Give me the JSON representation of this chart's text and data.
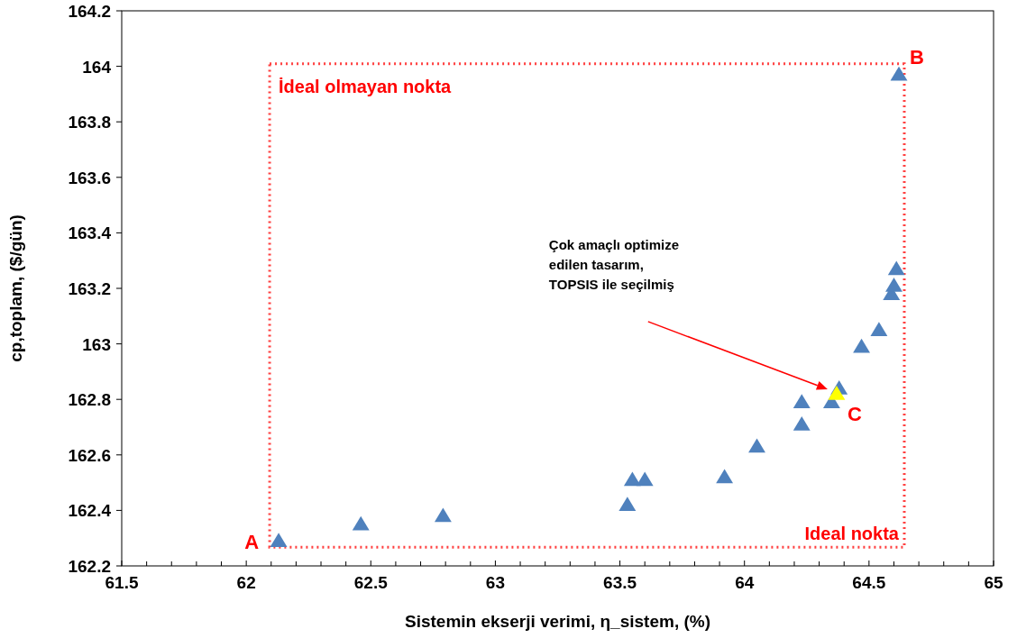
{
  "chart_data": {
    "type": "scatter",
    "xlabel": "Sistemin ekserji verimi, η_sistem, (%)",
    "ylabel": "cp,toplam, ($/gün)",
    "xlim": [
      61.5,
      65
    ],
    "ylim": [
      162.2,
      164.2
    ],
    "xticks": [
      61.5,
      {
        "value": 61.6,
        "label": null
      },
      {
        "value": 61.7,
        "label": null
      },
      {
        "value": 61.8,
        "label": null
      },
      {
        "value": 61.9,
        "label": null
      },
      62,
      {
        "value": 62.1,
        "label": null
      },
      {
        "value": 62.2,
        "label": null
      },
      {
        "value": 62.3,
        "label": null
      },
      {
        "value": 62.4,
        "label": null
      },
      62.5,
      {
        "value": 62.6,
        "label": null
      },
      {
        "value": 62.7,
        "label": null
      },
      {
        "value": 62.8,
        "label": null
      },
      {
        "value": 62.9,
        "label": null
      },
      63,
      {
        "value": 63.1,
        "label": null
      },
      {
        "value": 63.2,
        "label": null
      },
      {
        "value": 63.3,
        "label": null
      },
      {
        "value": 63.4,
        "label": null
      },
      63.5,
      {
        "value": 63.6,
        "label": null
      },
      {
        "value": 63.7,
        "label": null
      },
      {
        "value": 63.8,
        "label": null
      },
      {
        "value": 63.9,
        "label": null
      },
      64,
      {
        "value": 64.1,
        "label": null
      },
      {
        "value": 64.2,
        "label": null
      },
      {
        "value": 64.3,
        "label": null
      },
      {
        "value": 64.4,
        "label": null
      },
      64.5,
      {
        "value": 64.6,
        "label": null
      },
      {
        "value": 64.7,
        "label": null
      },
      {
        "value": 64.8,
        "label": null
      },
      {
        "value": 64.9,
        "label": null
      },
      65
    ],
    "yticks": [
      162.2,
      162.4,
      162.6,
      162.8,
      163,
      163.2,
      163.4,
      163.6,
      163.8,
      164,
      164.2
    ],
    "marker": "triangle",
    "grid": false,
    "series": [
      {
        "color": "#4f81bd",
        "x": [
          62.13,
          62.46,
          62.79,
          63.53,
          63.55,
          63.6,
          63.92,
          64.05,
          64.23,
          64.23,
          64.35,
          64.38,
          64.47,
          64.54,
          64.59,
          64.6,
          64.61,
          64.62
        ],
        "values": [
          162.29,
          162.35,
          162.38,
          162.42,
          162.51,
          162.51,
          162.52,
          162.63,
          162.71,
          162.79,
          162.79,
          162.84,
          162.99,
          163.05,
          163.18,
          163.21,
          163.27,
          163.97
        ]
      },
      {
        "color": "#ffff00",
        "x": [
          64.37
        ],
        "values": [
          162.82
        ]
      }
    ],
    "annotations": [
      "İdeal olmayan nokta",
      "Ideal nokta",
      {
        "text": "A",
        "x": 62.13,
        "y": 162.29
      },
      {
        "text": "B",
        "x": 64.62,
        "y": 163.97
      },
      {
        "text": "C",
        "x": 64.37,
        "y": 162.82
      },
      "Çok amaçlı optimize\nedilen tasarım,\nTOPSIS ile seçilmiş"
    ]
  }
}
